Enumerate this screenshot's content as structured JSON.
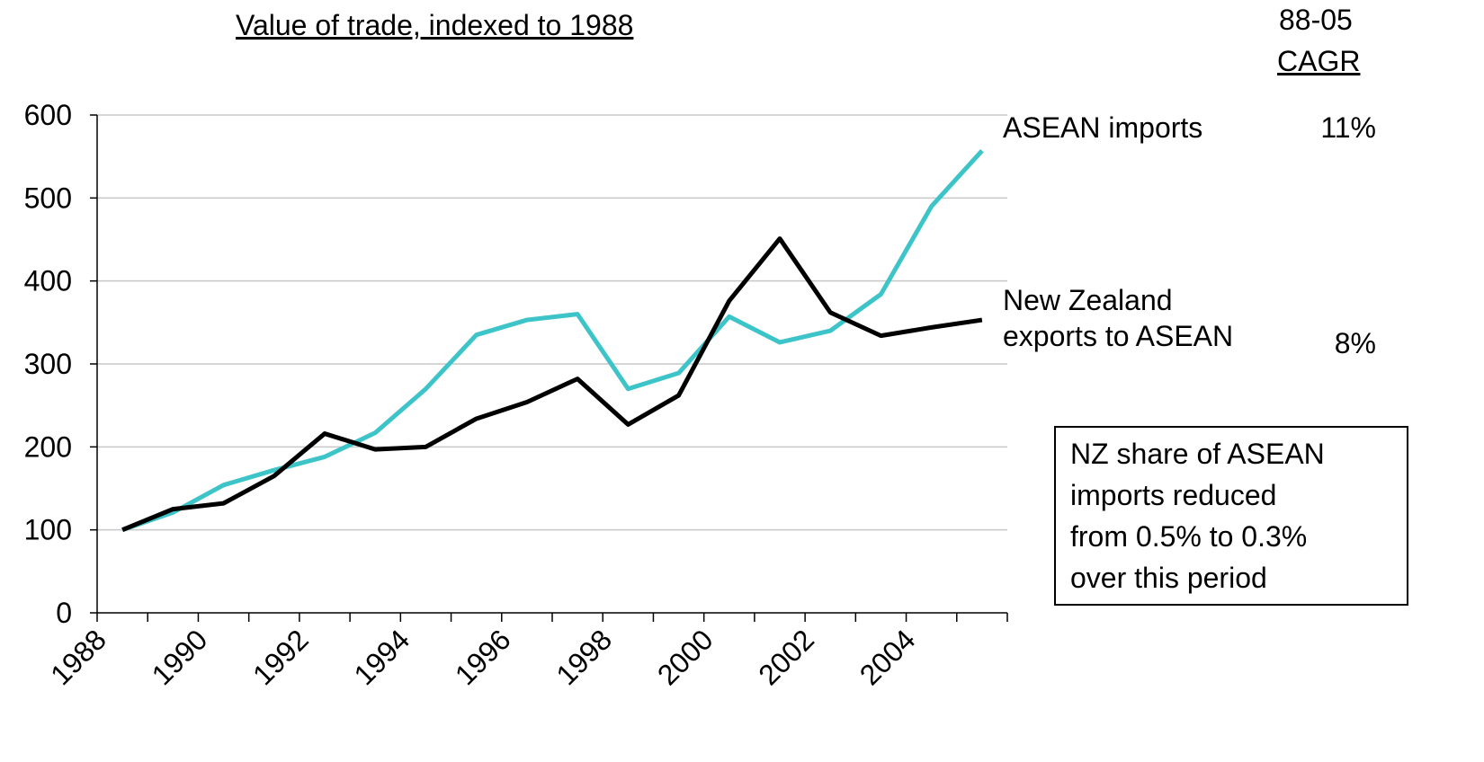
{
  "chart_data": {
    "type": "line",
    "title": "Value of trade, indexed to 1988",
    "cagr_header": [
      "88-05",
      "CAGR"
    ],
    "categories": [
      "1988",
      null,
      "1990",
      null,
      "1992",
      null,
      "1994",
      null,
      "1996",
      null,
      "1998",
      null,
      "2000",
      null,
      "2002",
      null,
      "2004",
      null
    ],
    "series": [
      {
        "name": "ASEAN imports",
        "color": "#3cc4c8",
        "cagr": "11%",
        "values": [
          100,
          121,
          154,
          172,
          188,
          217,
          270,
          335,
          353,
          360,
          270,
          289,
          357,
          326,
          340,
          384,
          490,
          557
        ]
      },
      {
        "name": "New Zealand exports to ASEAN",
        "color": "#000000",
        "cagr": "8%",
        "values": [
          100,
          125,
          132,
          165,
          216,
          197,
          200,
          234,
          254,
          282,
          227,
          262,
          376,
          451,
          362,
          334,
          344,
          353
        ]
      }
    ],
    "ylim": [
      0,
      600
    ],
    "yticks": [
      0,
      100,
      200,
      300,
      400,
      500,
      600
    ],
    "grid": true,
    "note": [
      "NZ share of ASEAN",
      "imports reduced",
      "from 0.5% to 0.3%",
      "over this period"
    ]
  }
}
